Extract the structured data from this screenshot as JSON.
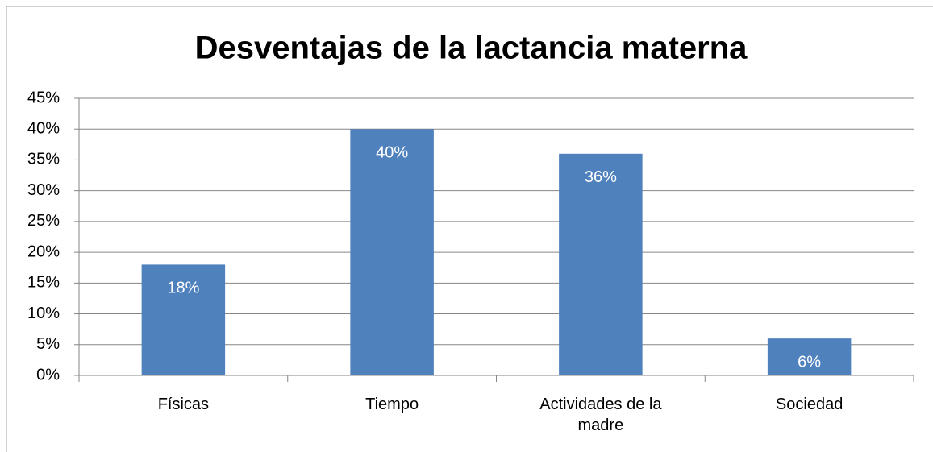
{
  "chart_data": {
    "type": "bar",
    "title": "Desventajas de la lactancia materna",
    "categories": [
      "Físicas",
      "Tiempo",
      "Actividades de la madre",
      "Sociedad"
    ],
    "values": [
      18,
      40,
      36,
      6
    ],
    "value_labels": [
      "18%",
      "40%",
      "36%",
      "6%"
    ],
    "color": "#4f81bd",
    "ylim": [
      0,
      45
    ],
    "yticks": [
      {
        "value": 0,
        "label": "0%"
      },
      {
        "value": 5,
        "label": "5%"
      },
      {
        "value": 10,
        "label": "10%"
      },
      {
        "value": 15,
        "label": "15%"
      },
      {
        "value": 20,
        "label": "20%"
      },
      {
        "value": 25,
        "label": "25%"
      },
      {
        "value": 30,
        "label": "30%"
      },
      {
        "value": 35,
        "label": "35%"
      },
      {
        "value": 40,
        "label": "40%"
      },
      {
        "value": 45,
        "label": "45%"
      }
    ],
    "grid": true
  }
}
